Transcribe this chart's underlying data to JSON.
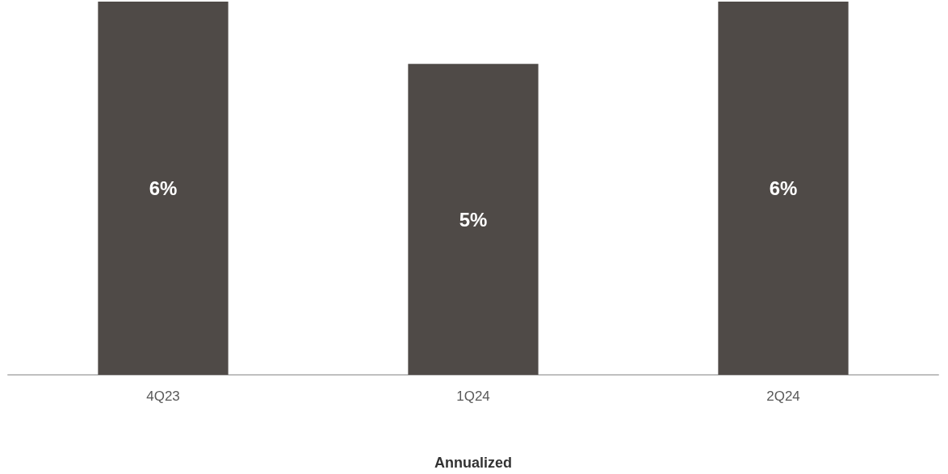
{
  "chart_data": {
    "type": "bar",
    "categories": [
      "4Q23",
      "1Q24",
      "2Q24"
    ],
    "values": [
      6,
      5,
      6
    ],
    "value_labels": [
      "6%",
      "5%",
      "6%"
    ],
    "color": "#4f4a47",
    "xlabel": "Annualized"
  }
}
